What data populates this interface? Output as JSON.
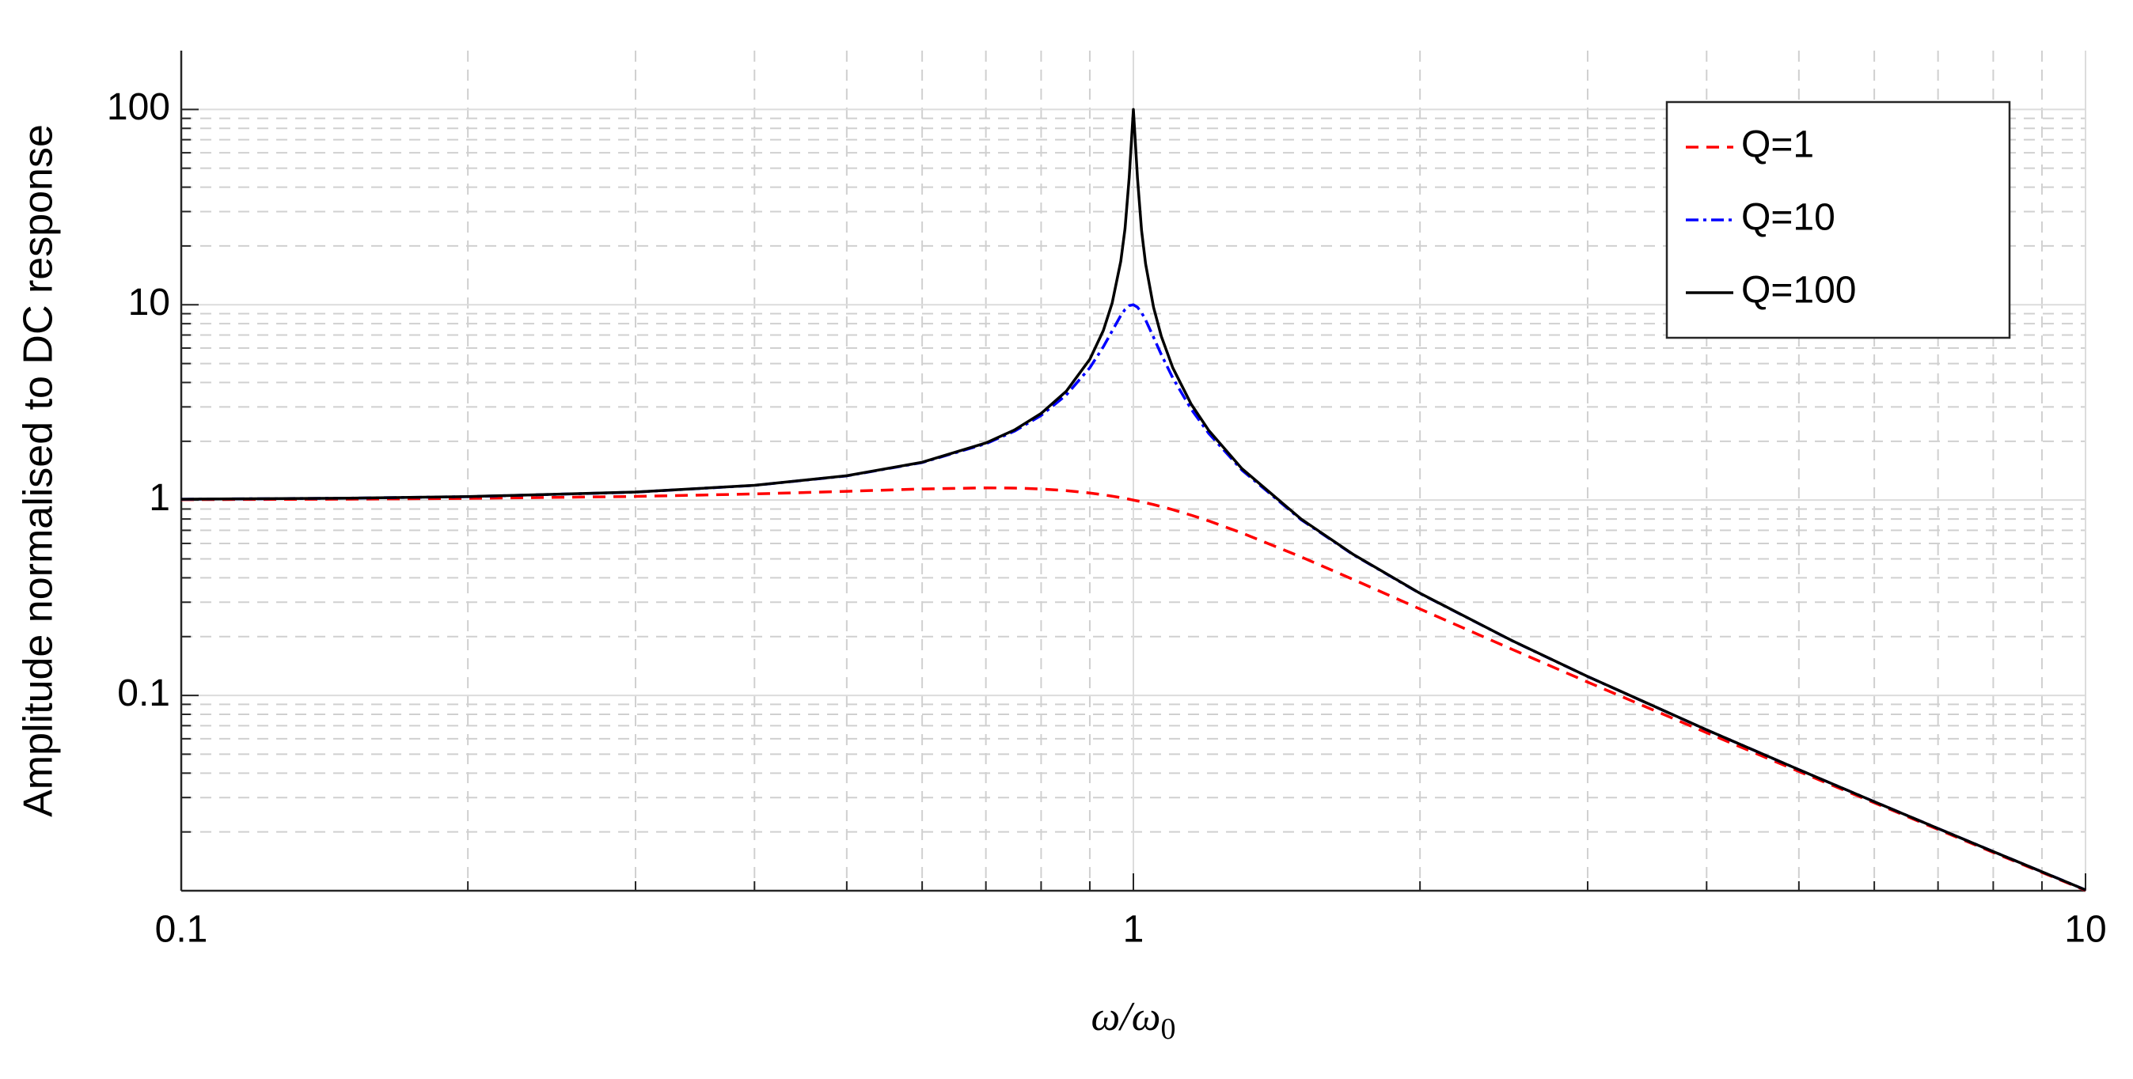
{
  "chart_data": {
    "type": "line",
    "ylabel": "Amplitude normalised to DC response",
    "xlabel": "ω/ω",
    "xlabel_subscript": "0",
    "x": [
      0.1,
      0.15,
      0.2,
      0.3,
      0.4,
      0.5,
      0.6,
      0.7,
      0.75,
      0.8,
      0.85,
      0.9,
      0.93,
      0.95,
      0.97,
      0.98,
      0.99,
      1,
      1.01,
      1.02,
      1.03,
      1.05,
      1.07,
      1.1,
      1.15,
      1.2,
      1.3,
      1.5,
      1.7,
      2,
      2.5,
      3,
      4,
      5,
      6,
      7,
      8,
      10
    ],
    "series": [
      {
        "name": "Q=1",
        "color": "#ff0000",
        "dash": "dashed",
        "values": [
          1.005,
          1.011,
          1.02,
          1.044,
          1.075,
          1.109,
          1.14,
          1.155,
          1.152,
          1.14,
          1.118,
          1.087,
          1.064,
          1.047,
          1.029,
          1.02,
          1.01,
          1,
          0.99,
          0.98,
          0.969,
          0.948,
          0.926,
          0.893,
          0.837,
          0.782,
          0.679,
          0.512,
          0.393,
          0.277,
          0.172,
          0.117,
          0.0644,
          0.0408,
          0.0282,
          0.0206,
          0.0157,
          0.01005
        ]
      },
      {
        "name": "Q=10",
        "color": "#0000ff",
        "dash": "dashdot",
        "values": [
          1.01,
          1.023,
          1.041,
          1.098,
          1.189,
          1.33,
          1.556,
          1.943,
          2.253,
          2.712,
          3.446,
          4.757,
          6.097,
          7.345,
          8.805,
          9.461,
          9.901,
          10,
          9.713,
          9.116,
          8.357,
          6.815,
          5.551,
          4.218,
          2.921,
          2.193,
          1.424,
          0.794,
          0.527,
          0.3326,
          0.1903,
          0.1249,
          0.0666,
          0.04166,
          0.02857,
          0.02083,
          0.01587,
          0.0101
        ]
      },
      {
        "name": "Q=100",
        "color": "#000000",
        "dash": "solid",
        "values": [
          1.0101,
          1.023,
          1.042,
          1.099,
          1.19,
          1.333,
          1.562,
          1.961,
          2.285,
          2.777,
          3.602,
          5.257,
          7.385,
          10.208,
          16.7,
          24.51,
          44.99,
          100,
          44.45,
          24.0,
          16.19,
          9.705,
          6.883,
          4.755,
          3.099,
          2.272,
          1.449,
          0.8,
          0.529,
          0.3333,
          0.1905,
          0.125,
          0.06667,
          0.04167,
          0.02857,
          0.02083,
          0.01587,
          0.0101
        ]
      }
    ],
    "xscale": "log",
    "yscale": "log",
    "xlim": [
      0.1,
      10
    ],
    "ylim": [
      0.01,
      200
    ],
    "xticks": [
      0.1,
      1,
      10
    ],
    "yticks": [
      0.1,
      1,
      10,
      100
    ],
    "grid": true,
    "minor_grid": true,
    "legend": "northeast"
  }
}
